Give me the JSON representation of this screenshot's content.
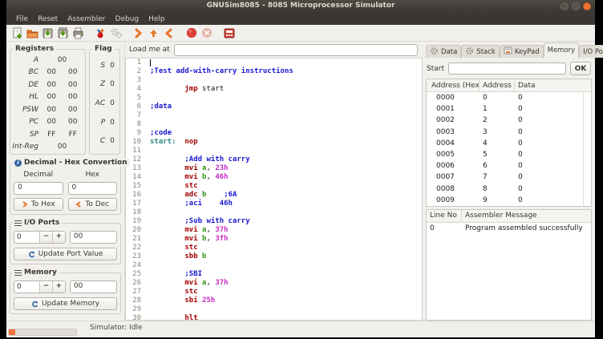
{
  "colors": {
    "keyword": "#a40000",
    "comment": "#1717d1",
    "register": "#37941f",
    "number": "#c72bc7",
    "label": "#298787",
    "accent": "#f2703a",
    "close_button": "#ef7134",
    "titlebar": "#3b3833"
  },
  "window": {
    "title": "GNUSim8085 - 8085 Microprocessor Simulator"
  },
  "menu": [
    "File",
    "Reset",
    "Assembler",
    "Debug",
    "Help"
  ],
  "toolbar": {
    "groups": [
      [
        "new-file",
        "open-folder",
        "save",
        "save-as",
        "print"
      ],
      [
        "assemble",
        "settings-gears"
      ],
      [
        "step-next",
        "step-up",
        "step-back"
      ],
      [
        "run",
        "stop"
      ],
      [
        "keypad-window"
      ]
    ],
    "disabled": [
      "settings-gears",
      "stop"
    ]
  },
  "registers": {
    "title": "Registers",
    "rows": [
      {
        "name": "A",
        "values": [
          "00"
        ]
      },
      {
        "name": "BC",
        "values": [
          "00",
          "00"
        ]
      },
      {
        "name": "DE",
        "values": [
          "00",
          "00"
        ]
      },
      {
        "name": "HL",
        "values": [
          "00",
          "00"
        ]
      },
      {
        "name": "PSW",
        "values": [
          "00",
          "00"
        ]
      },
      {
        "name": "PC",
        "values": [
          "00",
          "00"
        ]
      },
      {
        "name": "SP",
        "values": [
          "FF",
          "FF"
        ]
      },
      {
        "name": "Int-Reg",
        "values": [
          "00"
        ]
      }
    ]
  },
  "flags": {
    "title": "Flag",
    "rows": [
      {
        "name": "S",
        "value": "0"
      },
      {
        "name": "Z",
        "value": "0"
      },
      {
        "name": "AC",
        "value": "0"
      },
      {
        "name": "P",
        "value": "0"
      },
      {
        "name": "C",
        "value": "0"
      }
    ]
  },
  "conversion": {
    "title": "Decimal - Hex Convertion",
    "decimal_label": "Decimal",
    "hex_label": "Hex",
    "decimal_value": "0",
    "hex_value": "0",
    "to_hex_label": "To Hex",
    "to_dec_label": "To Dec"
  },
  "io_ports": {
    "title": "I/O Ports",
    "address_value": "0",
    "minus": "−",
    "plus": "+",
    "data_value": "00",
    "button_label": "Update Port Value"
  },
  "memory_panel": {
    "title": "Memory",
    "address_value": "0",
    "minus": "−",
    "plus": "+",
    "data_value": "00",
    "button_label": "Update Memory"
  },
  "editor": {
    "load_label": "Load me at",
    "load_value": "",
    "lines": [
      [],
      [
        {
          "t": ";Test add-with-carry instructions",
          "c": "c"
        }
      ],
      [],
      [
        {
          "t": "        ",
          "c": "p"
        },
        {
          "t": "jmp",
          "c": "k"
        },
        {
          "t": " start",
          "c": "p"
        }
      ],
      [],
      [
        {
          "t": ";data",
          "c": "c"
        }
      ],
      [],
      [],
      [
        {
          "t": ";code",
          "c": "c"
        }
      ],
      [
        {
          "t": "start:",
          "c": "l"
        },
        {
          "t": "  ",
          "c": "p"
        },
        {
          "t": "nop",
          "c": "k"
        }
      ],
      [],
      [
        {
          "t": "        ",
          "c": "p"
        },
        {
          "t": ";Add with carry",
          "c": "c"
        }
      ],
      [
        {
          "t": "        ",
          "c": "p"
        },
        {
          "t": "mvi",
          "c": "k"
        },
        {
          "t": " ",
          "c": "p"
        },
        {
          "t": "a",
          "c": "r"
        },
        {
          "t": ", ",
          "c": "p"
        },
        {
          "t": "23h",
          "c": "n"
        }
      ],
      [
        {
          "t": "        ",
          "c": "p"
        },
        {
          "t": "mvi",
          "c": "k"
        },
        {
          "t": " ",
          "c": "p"
        },
        {
          "t": "b",
          "c": "r"
        },
        {
          "t": ", ",
          "c": "p"
        },
        {
          "t": "46h",
          "c": "n"
        }
      ],
      [
        {
          "t": "        ",
          "c": "p"
        },
        {
          "t": "stc",
          "c": "k"
        }
      ],
      [
        {
          "t": "        ",
          "c": "p"
        },
        {
          "t": "adc",
          "c": "k"
        },
        {
          "t": " ",
          "c": "p"
        },
        {
          "t": "b",
          "c": "r"
        },
        {
          "t": "    ",
          "c": "p"
        },
        {
          "t": ";6A",
          "c": "c"
        }
      ],
      [
        {
          "t": "        ",
          "c": "p"
        },
        {
          "t": ";aci    46h",
          "c": "c"
        }
      ],
      [],
      [
        {
          "t": "        ",
          "c": "p"
        },
        {
          "t": ";Sub with carry",
          "c": "c"
        }
      ],
      [
        {
          "t": "        ",
          "c": "p"
        },
        {
          "t": "mvi",
          "c": "k"
        },
        {
          "t": " ",
          "c": "p"
        },
        {
          "t": "a",
          "c": "r"
        },
        {
          "t": ", ",
          "c": "p"
        },
        {
          "t": "37h",
          "c": "n"
        }
      ],
      [
        {
          "t": "        ",
          "c": "p"
        },
        {
          "t": "mvi",
          "c": "k"
        },
        {
          "t": " ",
          "c": "p"
        },
        {
          "t": "b",
          "c": "r"
        },
        {
          "t": ", ",
          "c": "p"
        },
        {
          "t": "3fh",
          "c": "n"
        }
      ],
      [
        {
          "t": "        ",
          "c": "p"
        },
        {
          "t": "stc",
          "c": "k"
        }
      ],
      [
        {
          "t": "        ",
          "c": "p"
        },
        {
          "t": "sbb",
          "c": "k"
        },
        {
          "t": " ",
          "c": "p"
        },
        {
          "t": "b",
          "c": "r"
        }
      ],
      [],
      [
        {
          "t": "        ",
          "c": "p"
        },
        {
          "t": ";SBI",
          "c": "c"
        }
      ],
      [
        {
          "t": "        ",
          "c": "p"
        },
        {
          "t": "mvi",
          "c": "k"
        },
        {
          "t": " ",
          "c": "p"
        },
        {
          "t": "a",
          "c": "r"
        },
        {
          "t": ", ",
          "c": "p"
        },
        {
          "t": "37h",
          "c": "n"
        }
      ],
      [
        {
          "t": "        ",
          "c": "p"
        },
        {
          "t": "stc",
          "c": "k"
        }
      ],
      [
        {
          "t": "        ",
          "c": "p"
        },
        {
          "t": "sbi",
          "c": "k"
        },
        {
          "t": " ",
          "c": "p"
        },
        {
          "t": "25h",
          "c": "n"
        }
      ],
      [],
      [
        {
          "t": "        ",
          "c": "p"
        },
        {
          "t": "hlt",
          "c": "k"
        }
      ]
    ]
  },
  "right_panel": {
    "tabs": [
      {
        "label": "Data",
        "icon": "gear",
        "active": false
      },
      {
        "label": "Stack",
        "icon": "gear",
        "active": false
      },
      {
        "label": "KeyPad",
        "icon": "keypad",
        "active": false
      },
      {
        "label": "Memory",
        "icon": null,
        "active": true
      },
      {
        "label": "I/O Ports",
        "icon": null,
        "active": false
      }
    ],
    "start_label": "Start",
    "start_value": "",
    "ok_label": "OK",
    "memory_table": {
      "headers": [
        "Address (Hex)",
        "Address",
        "Data"
      ],
      "rows": [
        [
          "0000",
          "0",
          "0"
        ],
        [
          "0001",
          "1",
          "0"
        ],
        [
          "0002",
          "2",
          "0"
        ],
        [
          "0003",
          "3",
          "0"
        ],
        [
          "0004",
          "4",
          "0"
        ],
        [
          "0005",
          "5",
          "0"
        ],
        [
          "0006",
          "6",
          "0"
        ],
        [
          "0007",
          "7",
          "0"
        ],
        [
          "0008",
          "8",
          "0"
        ],
        [
          "0009",
          "9",
          "0"
        ]
      ]
    },
    "messages": {
      "headers": [
        "Line No",
        "Assembler Message"
      ],
      "rows": [
        [
          "0",
          "Program assembled successfully"
        ]
      ]
    }
  },
  "status": {
    "text": "Simulator: Idle"
  }
}
